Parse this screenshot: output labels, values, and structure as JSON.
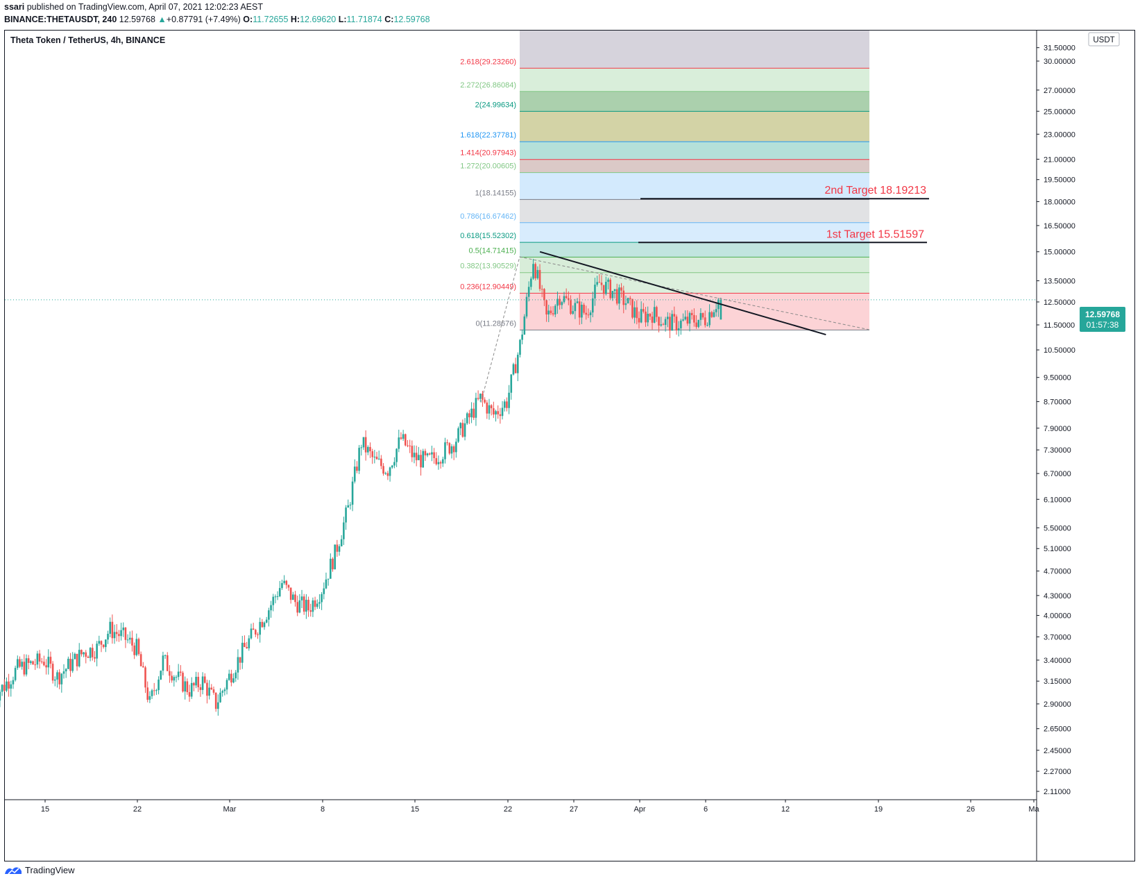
{
  "header": {
    "author": "ssari",
    "published_text": "published on TradingView.com, April 07, 2021 12:02:23 AEST",
    "symbol_line": "BINANCE:THETAUSDT, 240",
    "last": "12.59768",
    "change": "+0.87791 (+7.49%)",
    "o_label": "O:",
    "o_value": "11.72655",
    "h_label": "H:",
    "h_value": "12.69620",
    "l_label": "L:",
    "l_value": "11.71874",
    "c_label": "C:",
    "c_value": "12.59768"
  },
  "footer": {
    "brand": "TradingView"
  },
  "colors": {
    "up": "#26a69a",
    "down": "#ef5350",
    "bg": "#ffffff",
    "text": "#131722"
  },
  "chart_data": {
    "type": "candlestick",
    "title": "Theta Token / TetherUS, 4h, BINANCE",
    "currency_badge": "USDT",
    "y_scale": "log",
    "ylim": [
      2.0,
      31.5
    ],
    "y_ticks": [
      "31.50000",
      "30.00000",
      "27.00000",
      "25.00000",
      "23.00000",
      "21.00000",
      "19.50000",
      "18.00000",
      "16.50000",
      "15.00000",
      "13.50000",
      "12.50000",
      "11.50000",
      "10.50000",
      "9.50000",
      "8.70000",
      "7.90000",
      "7.30000",
      "6.70000",
      "6.10000",
      "5.50000",
      "5.10000",
      "4.70000",
      "4.30000",
      "4.00000",
      "3.70000",
      "3.40000",
      "3.15000",
      "2.90000",
      "2.65000",
      "2.45000",
      "2.27000",
      "2.11000"
    ],
    "x_ticks": [
      "15",
      "22",
      "Mar",
      "8",
      "15",
      "22",
      "27",
      "Apr",
      "6",
      "12",
      "19",
      "26",
      "Ma"
    ],
    "price_badge": {
      "price": "12.59768",
      "timer": "01:57:38"
    },
    "close_path": [
      {
        "date": "2021-02-11",
        "close": 2.95
      },
      {
        "date": "2021-02-12",
        "close": 3.1
      },
      {
        "date": "2021-02-13",
        "close": 3.3
      },
      {
        "date": "2021-02-14",
        "close": 3.35
      },
      {
        "date": "2021-02-15",
        "close": 3.4
      },
      {
        "date": "2021-02-16",
        "close": 3.2
      },
      {
        "date": "2021-02-17",
        "close": 3.35
      },
      {
        "date": "2021-02-18",
        "close": 3.5
      },
      {
        "date": "2021-02-19",
        "close": 3.55
      },
      {
        "date": "2021-02-20",
        "close": 3.8
      },
      {
        "date": "2021-02-21",
        "close": 3.7
      },
      {
        "date": "2021-02-22",
        "close": 3.55
      },
      {
        "date": "2021-02-23",
        "close": 2.9
      },
      {
        "date": "2021-02-24",
        "close": 3.4
      },
      {
        "date": "2021-02-25",
        "close": 3.2
      },
      {
        "date": "2021-02-26",
        "close": 3.05
      },
      {
        "date": "2021-02-27",
        "close": 3.15
      },
      {
        "date": "2021-02-28",
        "close": 2.9
      },
      {
        "date": "2021-03-01",
        "close": 3.2
      },
      {
        "date": "2021-03-02",
        "close": 3.5
      },
      {
        "date": "2021-03-03",
        "close": 3.8
      },
      {
        "date": "2021-03-04",
        "close": 4.1
      },
      {
        "date": "2021-03-05",
        "close": 4.5
      },
      {
        "date": "2021-03-06",
        "close": 4.2
      },
      {
        "date": "2021-03-07",
        "close": 4.1
      },
      {
        "date": "2021-03-08",
        "close": 4.4
      },
      {
        "date": "2021-03-09",
        "close": 5.0
      },
      {
        "date": "2021-03-10",
        "close": 5.9
      },
      {
        "date": "2021-03-11",
        "close": 7.5
      },
      {
        "date": "2021-03-12",
        "close": 7.0
      },
      {
        "date": "2021-03-13",
        "close": 6.8
      },
      {
        "date": "2021-03-14",
        "close": 7.6
      },
      {
        "date": "2021-03-15",
        "close": 7.1
      },
      {
        "date": "2021-03-16",
        "close": 7.0
      },
      {
        "date": "2021-03-17",
        "close": 7.2
      },
      {
        "date": "2021-03-18",
        "close": 7.5
      },
      {
        "date": "2021-03-19",
        "close": 8.1
      },
      {
        "date": "2021-03-20",
        "close": 8.8
      },
      {
        "date": "2021-03-21",
        "close": 8.3
      },
      {
        "date": "2021-03-22",
        "close": 8.7
      },
      {
        "date": "2021-03-23",
        "close": 10.7
      },
      {
        "date": "2021-03-24",
        "close": 14.6
      },
      {
        "date": "2021-03-25",
        "close": 11.8
      },
      {
        "date": "2021-03-26",
        "close": 12.8
      },
      {
        "date": "2021-03-27",
        "close": 12.3
      },
      {
        "date": "2021-03-28",
        "close": 12.0
      },
      {
        "date": "2021-03-29",
        "close": 13.4
      },
      {
        "date": "2021-03-30",
        "close": 13.0
      },
      {
        "date": "2021-03-31",
        "close": 12.5
      },
      {
        "date": "2021-04-01",
        "close": 11.8
      },
      {
        "date": "2021-04-02",
        "close": 12.0
      },
      {
        "date": "2021-04-03",
        "close": 11.6
      },
      {
        "date": "2021-04-04",
        "close": 11.55
      },
      {
        "date": "2021-04-05",
        "close": 11.7
      },
      {
        "date": "2021-04-06",
        "close": 11.75
      },
      {
        "date": "2021-04-07",
        "close": 12.59768
      }
    ],
    "fib_levels": [
      {
        "ratio": "0",
        "price": 11.28676,
        "label": "0(11.28676)",
        "label_color": "#787b86",
        "fill": "rgba(242,54,69,0.22)"
      },
      {
        "ratio": "0.236",
        "price": 12.90449,
        "label": "0.236(12.90449)",
        "label_color": "#f23645",
        "fill": "rgba(129,199,132,0.28)"
      },
      {
        "ratio": "0.382",
        "price": 13.90529,
        "label": "0.382(13.90529)",
        "label_color": "#81c784",
        "fill": "rgba(76,175,80,0.22)"
      },
      {
        "ratio": "0.5",
        "price": 14.71415,
        "label": "0.5(14.71415)",
        "label_color": "#4caf50",
        "fill": "rgba(8,153,129,0.25)"
      },
      {
        "ratio": "0.618",
        "price": 15.52302,
        "label": "0.618(15.52302)",
        "label_color": "#089981",
        "fill": "rgba(100,181,246,0.25)"
      },
      {
        "ratio": "0.786",
        "price": 16.67462,
        "label": "0.786(16.67462)",
        "label_color": "#64b5f6",
        "fill": "rgba(120,123,134,0.22)"
      },
      {
        "ratio": "1",
        "price": 18.14155,
        "label": "1(18.14155)",
        "label_color": "#787b86",
        "fill": "rgba(33,150,243,0.20)"
      },
      {
        "ratio": "1.272",
        "price": 20.00605,
        "label": "1.272(20.00605)",
        "label_color": "#81c784",
        "fill": "rgba(136,76,71,0.30)"
      },
      {
        "ratio": "1.414",
        "price": 20.97943,
        "label": "1.414(20.97943)",
        "label_color": "#f23645",
        "fill": "rgba(8,153,129,0.30)"
      },
      {
        "ratio": "1.618",
        "price": 22.37781,
        "label": "1.618(22.37781)",
        "label_color": "#2196f3",
        "fill": "rgba(128,128,0,0.35)"
      },
      {
        "ratio": "2",
        "price": 24.99634,
        "label": "2(24.99634)",
        "label_color": "#089981",
        "fill": "rgba(56,142,60,0.42)"
      },
      {
        "ratio": "2.272",
        "price": 26.86084,
        "label": "2.272(26.86084)",
        "label_color": "#81c784",
        "fill": "rgba(129,199,132,0.30)"
      },
      {
        "ratio": "2.618",
        "price": 29.2326,
        "label": "2.618(29.23260)",
        "label_color": "#f23645",
        "fill": "rgba(242,54,69,0.12)"
      }
    ],
    "fib_top_fill": "rgba(120,110,140,0.30)",
    "targets": [
      {
        "label": "1st Target 15.51597",
        "price": 15.51597
      },
      {
        "label": "2nd Target 18.19213",
        "price": 18.19213
      }
    ],
    "trendline": {
      "start": {
        "date": "2021-03-24",
        "price": 15.0
      },
      "end": {
        "date": "2021-04-14",
        "price": 11.1
      }
    }
  }
}
